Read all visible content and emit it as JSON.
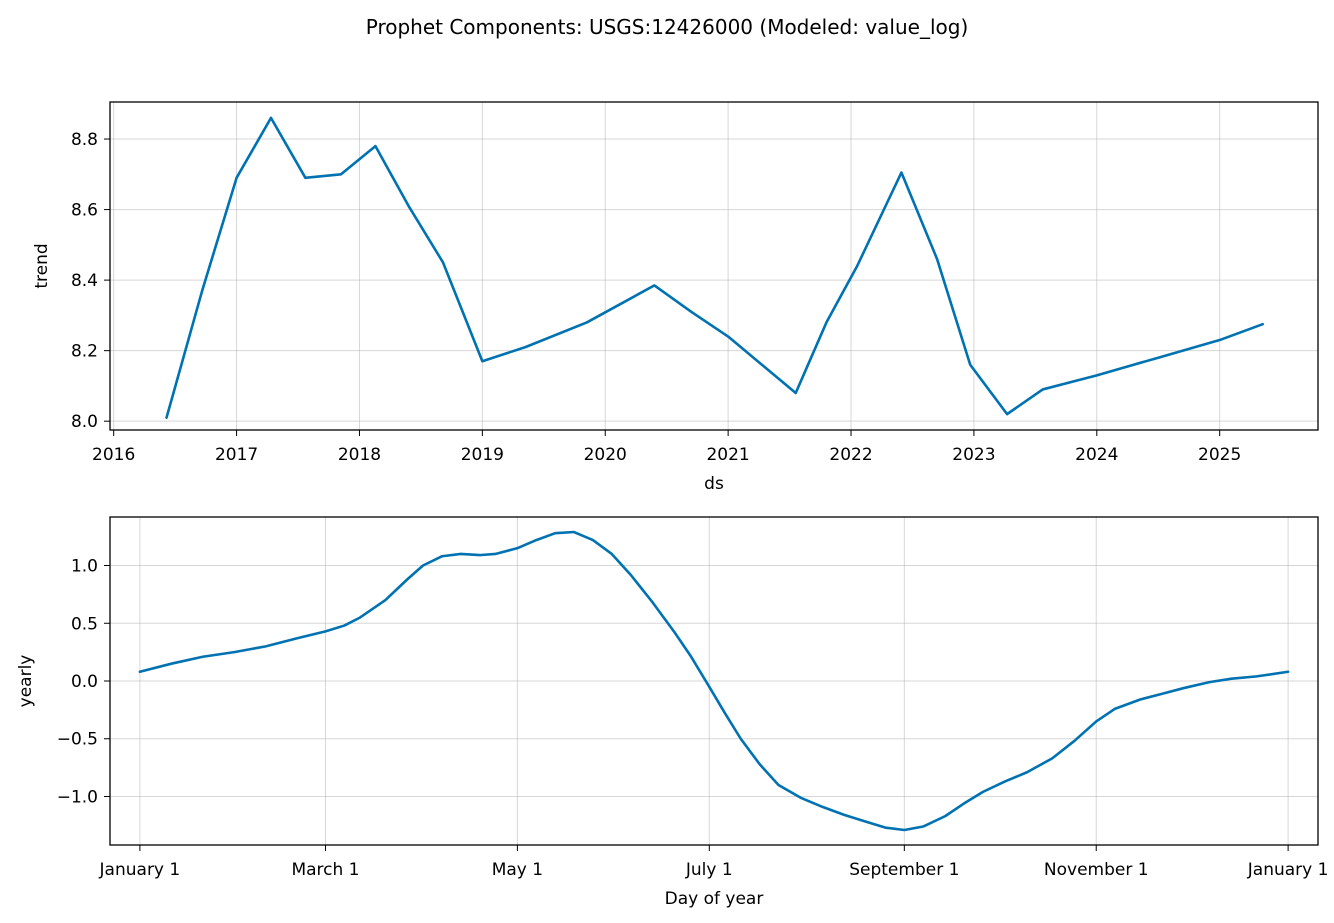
{
  "figure": {
    "title": "Prophet Components: USGS:12426000 (Modeled: value_log)"
  },
  "colors": {
    "line": "#0072b2",
    "grid": "#b0b0b0",
    "axis": "#000000"
  },
  "chart_data": [
    {
      "type": "line",
      "title": "",
      "xlabel": "ds",
      "ylabel": "trend",
      "grid": true,
      "xlim": [
        2015.97,
        2025.8
      ],
      "ylim": [
        7.975,
        8.905
      ],
      "x_ticks": [
        2016,
        2017,
        2018,
        2019,
        2020,
        2021,
        2022,
        2023,
        2024,
        2025
      ],
      "x_tick_labels": [
        "2016",
        "2017",
        "2018",
        "2019",
        "2020",
        "2021",
        "2022",
        "2023",
        "2024",
        "2025"
      ],
      "y_ticks": [
        8.0,
        8.2,
        8.4,
        8.6,
        8.8
      ],
      "y_tick_labels": [
        "8.0",
        "8.2",
        "8.4",
        "8.6",
        "8.8"
      ],
      "series": [
        {
          "x": [
            2016.43,
            2016.72,
            2017.0,
            2017.28,
            2017.56,
            2017.85,
            2018.13,
            2018.4,
            2018.68,
            2019.0,
            2019.35,
            2019.85,
            2020.4,
            2020.7,
            2021.0,
            2021.55,
            2021.8,
            2022.05,
            2022.41,
            2022.7,
            2022.97,
            2023.27,
            2023.56,
            2024.0,
            2024.5,
            2025.0,
            2025.35
          ],
          "values": [
            8.01,
            8.37,
            8.69,
            8.86,
            8.69,
            8.7,
            8.78,
            8.61,
            8.45,
            8.17,
            8.21,
            8.28,
            8.385,
            8.31,
            8.24,
            8.08,
            8.28,
            8.44,
            8.705,
            8.46,
            8.16,
            8.02,
            8.09,
            8.13,
            8.18,
            8.23,
            8.275
          ]
        }
      ]
    },
    {
      "type": "line",
      "title": "",
      "xlabel": "Day of year",
      "ylabel": "yearly",
      "grid": true,
      "xlim": [
        -9.5,
        374.5
      ],
      "ylim": [
        -1.42,
        1.42
      ],
      "x_ticks": [
        0,
        59,
        120,
        181,
        243,
        304,
        365
      ],
      "x_tick_labels": [
        "January 1",
        "March 1",
        "May 1",
        "July 1",
        "September 1",
        "November 1",
        "January 1"
      ],
      "y_ticks": [
        -1.0,
        -0.5,
        0.0,
        0.5,
        1.0
      ],
      "y_tick_labels": [
        "−1.0",
        "−0.5",
        "0.0",
        "0.5",
        "1.0"
      ],
      "series": [
        {
          "x": [
            0,
            10,
            20,
            30,
            40,
            50,
            59,
            65,
            70,
            78,
            85,
            90,
            96,
            102,
            108,
            113,
            120,
            126,
            132,
            138,
            144,
            150,
            156,
            163,
            170,
            175,
            181,
            186,
            191,
            197,
            203,
            210,
            217,
            224,
            231,
            237,
            243,
            249,
            256,
            262,
            268,
            275,
            282,
            290,
            297,
            304,
            310,
            318,
            325,
            332,
            340,
            347,
            355,
            365
          ],
          "values": [
            0.08,
            0.15,
            0.21,
            0.25,
            0.3,
            0.37,
            0.43,
            0.48,
            0.55,
            0.7,
            0.88,
            1.0,
            1.08,
            1.1,
            1.09,
            1.1,
            1.15,
            1.22,
            1.28,
            1.29,
            1.22,
            1.1,
            0.92,
            0.68,
            0.42,
            0.22,
            -0.05,
            -0.28,
            -0.5,
            -0.72,
            -0.9,
            -1.01,
            -1.09,
            -1.16,
            -1.22,
            -1.27,
            -1.29,
            -1.26,
            -1.17,
            -1.06,
            -0.96,
            -0.87,
            -0.79,
            -0.67,
            -0.52,
            -0.35,
            -0.24,
            -0.16,
            -0.11,
            -0.06,
            -0.01,
            0.02,
            0.04,
            0.08
          ]
        }
      ]
    }
  ]
}
